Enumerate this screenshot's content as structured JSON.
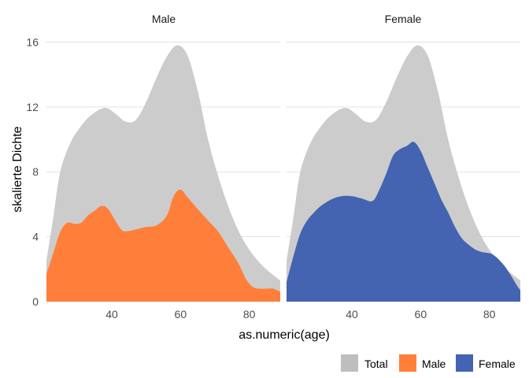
{
  "chart_data": {
    "type": "area",
    "xlabel": "as.numeric(age)",
    "ylabel": "skalierte Dichte",
    "xlim": [
      21,
      89
    ],
    "ylim": [
      0,
      16.8
    ],
    "x_ticks": [
      40,
      60,
      80
    ],
    "y_ticks": [
      0,
      4,
      8,
      12,
      16
    ],
    "grid": "horizontal major",
    "legend_position": "bottom-right",
    "legend": [
      {
        "label": "Total",
        "color": "#bebebe"
      },
      {
        "label": "Male",
        "color": "#ff7f3a"
      },
      {
        "label": "Female",
        "color": "#4463b1"
      }
    ],
    "panels": [
      {
        "title": "Male",
        "background": {
          "name": "Total",
          "color": "#cccccc",
          "x": [
            21,
            23,
            25,
            28,
            31,
            34,
            38,
            41,
            44,
            47,
            50,
            53,
            56,
            59,
            62,
            65,
            68,
            71,
            74,
            77,
            80,
            83,
            86,
            89
          ],
          "y": [
            2.5,
            5.2,
            8.0,
            9.8,
            10.8,
            11.5,
            11.95,
            11.6,
            11.1,
            11.2,
            12.3,
            13.8,
            15.1,
            15.8,
            15.2,
            13.0,
            10.0,
            7.7,
            5.8,
            4.3,
            3.2,
            2.4,
            1.8,
            1.3
          ]
        },
        "series": {
          "name": "Male",
          "color": "#ff7f3a",
          "x": [
            21,
            23,
            25,
            27,
            29,
            31,
            33,
            35,
            37,
            39,
            41,
            43,
            45,
            47,
            50,
            53,
            56,
            58,
            60,
            62,
            65,
            68,
            71,
            74,
            77,
            79,
            81,
            83,
            85,
            87,
            89
          ],
          "y": [
            1.7,
            3.0,
            4.3,
            4.85,
            4.8,
            4.85,
            5.3,
            5.6,
            5.9,
            5.7,
            5.0,
            4.4,
            4.35,
            4.45,
            4.6,
            4.7,
            5.3,
            6.5,
            6.9,
            6.45,
            5.7,
            5.0,
            4.3,
            3.3,
            2.3,
            1.4,
            0.9,
            0.8,
            0.8,
            0.8,
            0.6
          ]
        }
      },
      {
        "title": "Female",
        "background": {
          "name": "Total",
          "color": "#cccccc",
          "x": [
            21,
            23,
            25,
            28,
            31,
            34,
            38,
            41,
            44,
            47,
            50,
            53,
            56,
            59,
            62,
            65,
            68,
            71,
            74,
            77,
            80,
            83,
            86,
            89
          ],
          "y": [
            2.5,
            5.2,
            8.0,
            9.8,
            10.8,
            11.5,
            11.95,
            11.6,
            11.1,
            11.2,
            12.3,
            13.8,
            15.1,
            15.8,
            15.2,
            13.0,
            10.0,
            7.7,
            5.8,
            4.3,
            3.2,
            2.4,
            1.8,
            1.3
          ]
        },
        "series": {
          "name": "Female",
          "color": "#4463b1",
          "x": [
            21,
            23,
            25,
            27,
            29,
            31,
            34,
            37,
            40,
            43,
            46,
            48,
            50,
            52,
            54,
            56,
            58,
            60,
            62,
            64,
            66,
            68,
            70,
            72,
            74,
            76,
            78,
            81,
            84,
            86,
            88,
            89
          ],
          "y": [
            1.2,
            2.8,
            4.2,
            5.0,
            5.5,
            5.9,
            6.3,
            6.5,
            6.5,
            6.35,
            6.2,
            6.9,
            7.9,
            9.0,
            9.4,
            9.6,
            9.85,
            9.3,
            8.3,
            7.3,
            6.3,
            5.5,
            4.6,
            3.9,
            3.5,
            3.2,
            3.05,
            2.9,
            2.3,
            1.7,
            1.0,
            0.7
          ]
        }
      }
    ]
  }
}
